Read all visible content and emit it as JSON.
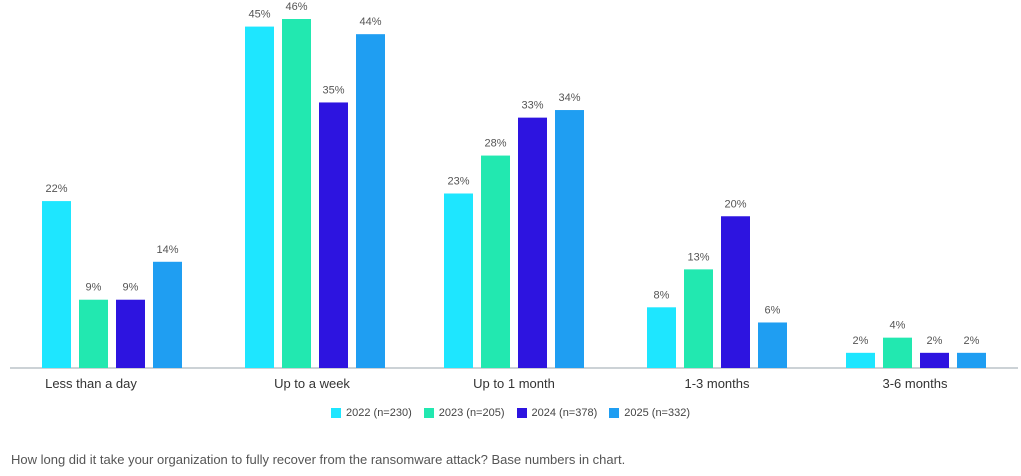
{
  "chart_data": {
    "type": "bar",
    "categories": [
      "Less than a day",
      "Up to a week",
      "Up to 1 month",
      "1-3 months",
      "3-6 months"
    ],
    "series": [
      {
        "name": "2022 (n=230)",
        "color": "#1ee6ff",
        "values": [
          22,
          45,
          23,
          8,
          2
        ]
      },
      {
        "name": "2023 (n=205)",
        "color": "#22e8b0",
        "values": [
          9,
          46,
          28,
          13,
          4
        ]
      },
      {
        "name": "2024 (n=378)",
        "color": "#2d14e0",
        "values": [
          9,
          35,
          33,
          20,
          2
        ]
      },
      {
        "name": "2025 (n=332)",
        "color": "#1f9ef2",
        "values": [
          14,
          44,
          34,
          6,
          2
        ]
      }
    ],
    "value_suffix": "%",
    "ylim": [
      0,
      46
    ],
    "legend_position": "bottom",
    "grid": false
  },
  "caption": "How long did it take your organization to fully recover from the ransomware attack? Base numbers in chart."
}
